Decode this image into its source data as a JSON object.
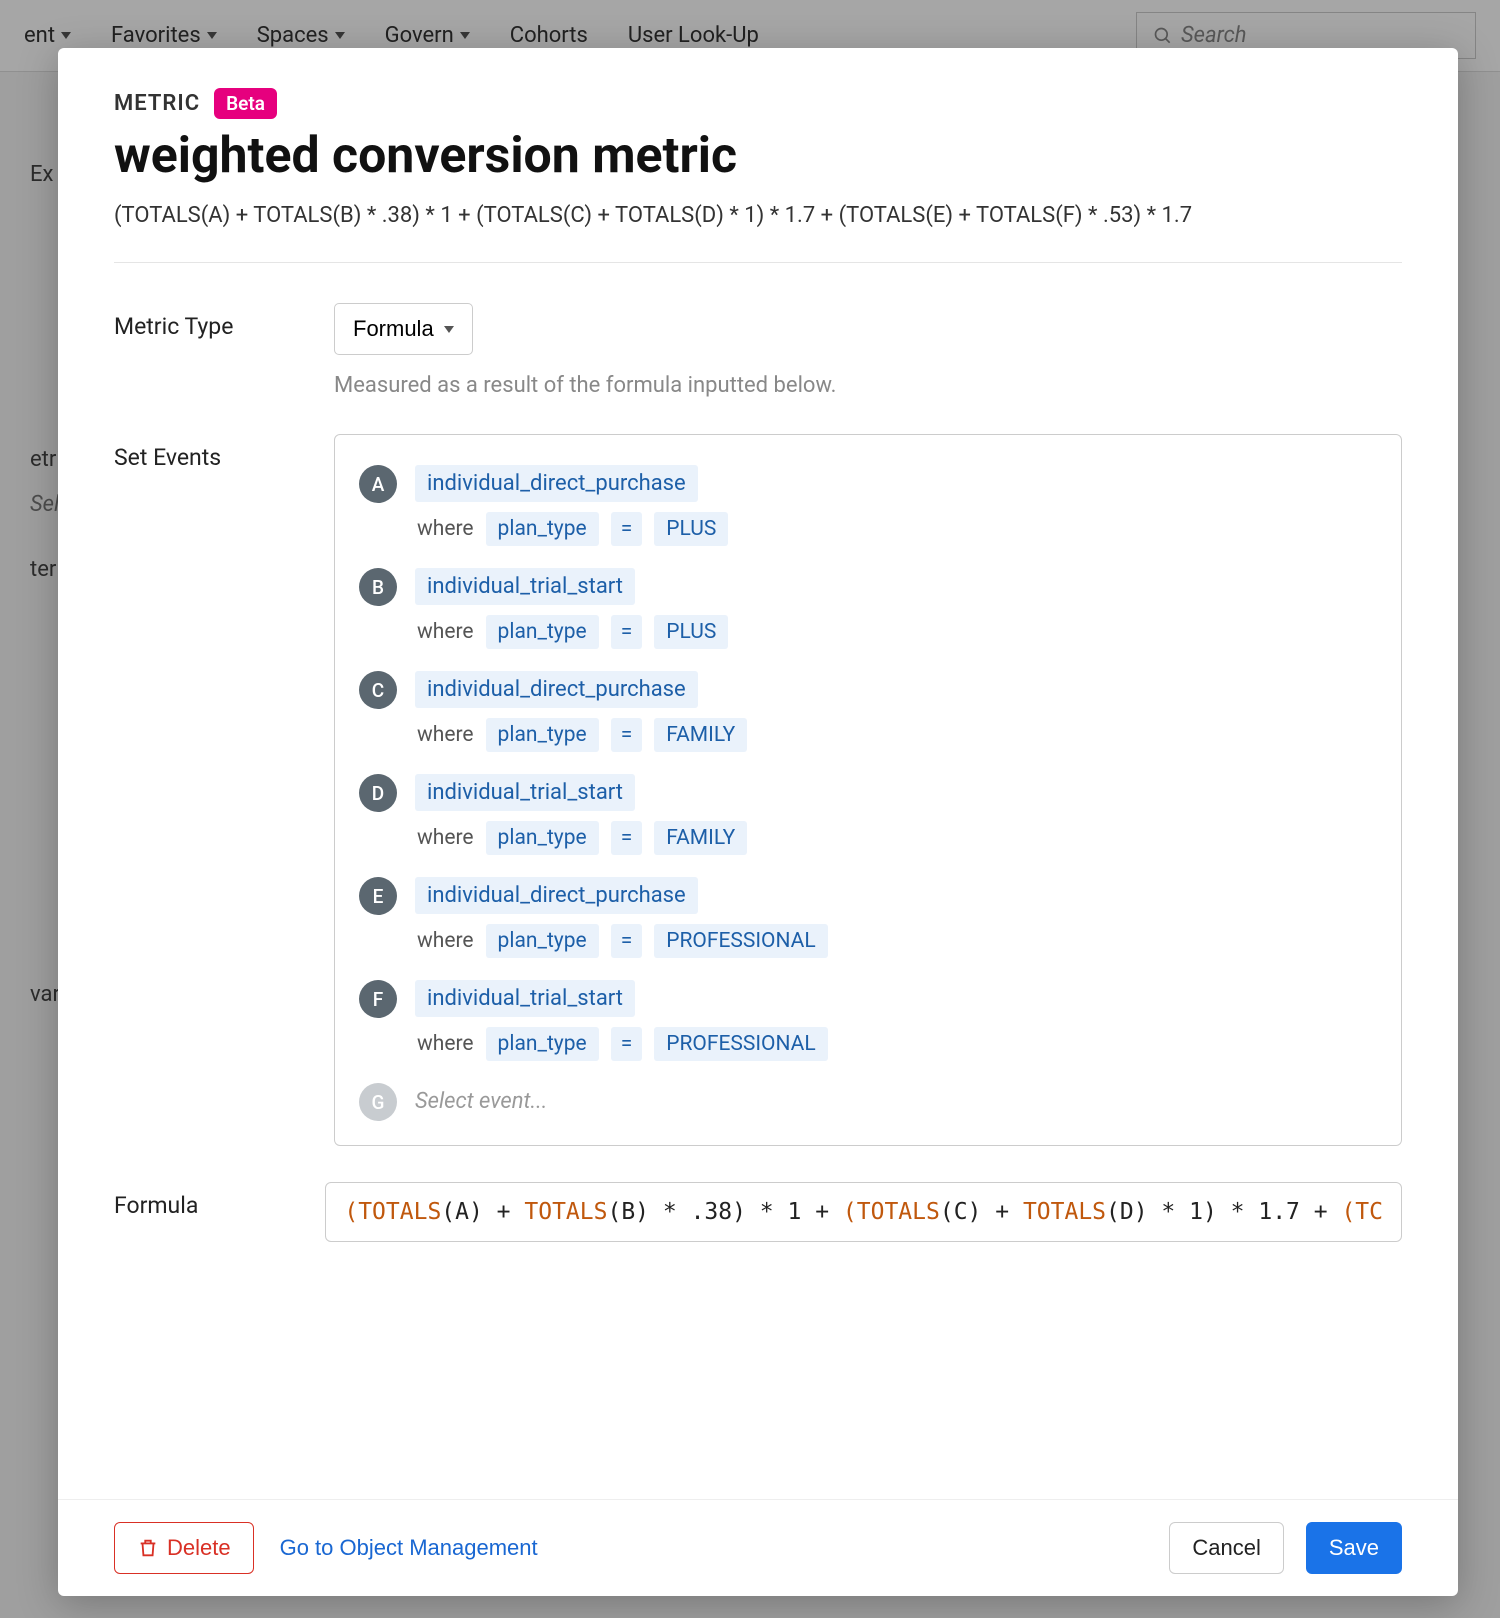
{
  "nav": {
    "items": [
      "ent",
      "Favorites",
      "Spaces",
      "Govern",
      "Cohorts",
      "User Look-Up"
    ],
    "hasDropdown": [
      true,
      true,
      true,
      true,
      false,
      false
    ],
    "searchPlaceholder": "Search"
  },
  "modal": {
    "eyebrow": "METRIC",
    "badge": "Beta",
    "title": "weighted conversion metric",
    "subtitle": "(TOTALS(A) + TOTALS(B) * .38) * 1 + (TOTALS(C) + TOTALS(D) * 1) * 1.7 + (TOTALS(E) + TOTALS(F) * .53) * 1.7",
    "metricType": {
      "label": "Metric Type",
      "value": "Formula",
      "helper": "Measured as a result of the formula inputted below."
    },
    "setEvents": {
      "label": "Set Events",
      "items": [
        {
          "letter": "A",
          "name": "individual_direct_purchase",
          "whereField": "plan_type",
          "whereOp": "=",
          "whereValue": "PLUS"
        },
        {
          "letter": "B",
          "name": "individual_trial_start",
          "whereField": "plan_type",
          "whereOp": "=",
          "whereValue": "PLUS"
        },
        {
          "letter": "C",
          "name": "individual_direct_purchase",
          "whereField": "plan_type",
          "whereOp": "=",
          "whereValue": "FAMILY"
        },
        {
          "letter": "D",
          "name": "individual_trial_start",
          "whereField": "plan_type",
          "whereOp": "=",
          "whereValue": "FAMILY"
        },
        {
          "letter": "E",
          "name": "individual_direct_purchase",
          "whereField": "plan_type",
          "whereOp": "=",
          "whereValue": "PROFESSIONAL"
        },
        {
          "letter": "F",
          "name": "individual_trial_start",
          "whereField": "plan_type",
          "whereOp": "=",
          "whereValue": "PROFESSIONAL"
        }
      ],
      "placeholder": {
        "letter": "G",
        "text": "Select event..."
      },
      "whereWord": "where"
    },
    "formula": {
      "label": "Formula",
      "tokens": [
        {
          "t": "(",
          "k": "paren"
        },
        {
          "t": "TOTALS",
          "k": "fn"
        },
        {
          "t": "(A) + ",
          "k": "plain"
        },
        {
          "t": "TOTALS",
          "k": "fn"
        },
        {
          "t": "(B) * .38) * 1 + ",
          "k": "plain"
        },
        {
          "t": "(",
          "k": "paren"
        },
        {
          "t": "TOTALS",
          "k": "fn"
        },
        {
          "t": "(C) + ",
          "k": "plain"
        },
        {
          "t": "TOTALS",
          "k": "fn"
        },
        {
          "t": "(D) * 1) * 1.7 + ",
          "k": "plain"
        },
        {
          "t": "(",
          "k": "paren"
        },
        {
          "t": "TC",
          "k": "fn"
        }
      ]
    },
    "footer": {
      "delete": "Delete",
      "objMgmt": "Go to Object Management",
      "cancel": "Cancel",
      "save": "Save"
    }
  },
  "colors": {
    "badge": "#e6007e",
    "chipBg": "#eaf2fb",
    "chipFg": "#1d5fa8",
    "primary": "#1a73e8",
    "danger": "#d93025",
    "link": "#1967d2",
    "letterBg": "#5b6770",
    "placeholderLetterBg": "#c8ccd0",
    "tokenFn": "#c0580d"
  }
}
